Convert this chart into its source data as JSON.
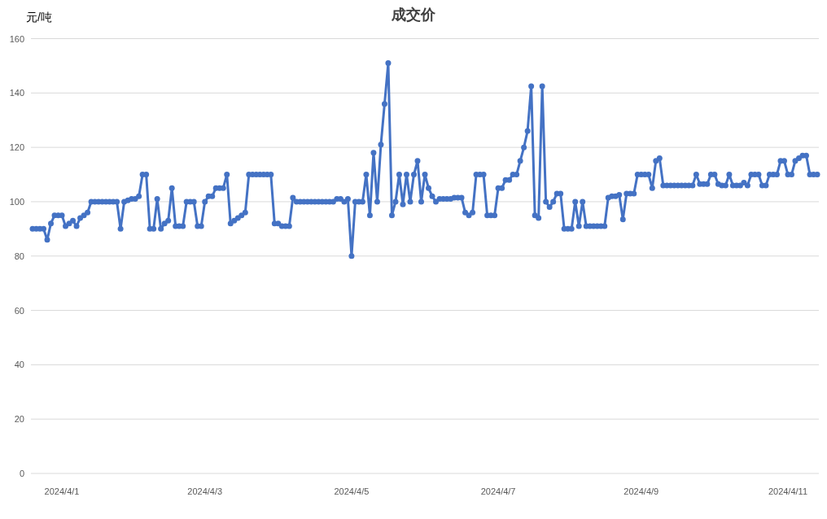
{
  "chart_data": {
    "type": "line",
    "title": "成交价",
    "ylabel": "元/吨",
    "categories": [
      null,
      null,
      null,
      null,
      null,
      null,
      null,
      null,
      "2024/4/1",
      null,
      null,
      null,
      null,
      null,
      null,
      null,
      null,
      null,
      null,
      null,
      null,
      null,
      null,
      null,
      null,
      null,
      null,
      null,
      null,
      null,
      null,
      null,
      null,
      null,
      null,
      null,
      null,
      null,
      null,
      null,
      null,
      null,
      null,
      null,
      null,
      null,
      null,
      "2024/4/3",
      null,
      null,
      null,
      null,
      null,
      null,
      null,
      null,
      null,
      null,
      null,
      null,
      null,
      null,
      null,
      null,
      null,
      null,
      null,
      null,
      null,
      null,
      null,
      null,
      null,
      null,
      null,
      null,
      null,
      null,
      null,
      null,
      null,
      null,
      null,
      null,
      null,
      null,
      null,
      "2024/4/5",
      null,
      null,
      null,
      null,
      null,
      null,
      null,
      null,
      null,
      null,
      null,
      null,
      null,
      null,
      null,
      null,
      null,
      null,
      null,
      null,
      null,
      null,
      null,
      null,
      null,
      null,
      null,
      null,
      null,
      null,
      null,
      null,
      null,
      null,
      null,
      null,
      null,
      null,
      null,
      "2024/4/7",
      null,
      null,
      null,
      null,
      null,
      null,
      null,
      null,
      null,
      null,
      null,
      null,
      null,
      null,
      null,
      null,
      null,
      null,
      null,
      null,
      null,
      null,
      null,
      null,
      null,
      null,
      null,
      null,
      null,
      null,
      null,
      null,
      null,
      null,
      null,
      null,
      null,
      null,
      "2024/4/9",
      null,
      null,
      null,
      null,
      null,
      null,
      null,
      null,
      null,
      null,
      null,
      null,
      null,
      null,
      null,
      null,
      null,
      null,
      null,
      null,
      null,
      null,
      null,
      null,
      null,
      null,
      null,
      null,
      null,
      null,
      null,
      null,
      null,
      null,
      null,
      null,
      null,
      null,
      null,
      "2024/4/11",
      null,
      null,
      null,
      null,
      null,
      null,
      null,
      null
    ],
    "values": [
      90,
      90,
      90,
      90,
      86,
      92,
      95,
      95,
      95,
      91,
      92,
      93,
      91,
      94,
      95,
      96,
      100,
      100,
      100,
      100,
      100,
      100,
      100,
      100,
      90,
      100,
      100.5,
      101,
      101,
      102,
      110,
      110,
      90,
      90,
      101,
      90,
      92,
      93,
      105,
      91,
      91,
      91,
      100,
      100,
      100,
      91,
      91,
      100,
      102,
      102,
      105,
      105,
      105,
      110,
      92,
      93,
      94,
      95,
      96,
      110,
      110,
      110,
      110,
      110,
      110,
      110,
      92,
      92,
      91,
      91,
      91,
      101.5,
      100,
      100,
      100,
      100,
      100,
      100,
      100,
      100,
      100,
      100,
      100,
      101,
      101,
      100,
      101,
      80,
      100,
      100,
      100,
      110,
      95,
      118,
      100,
      121,
      136,
      151,
      95,
      100,
      110,
      99,
      110,
      100,
      110,
      115,
      100,
      110,
      105,
      102,
      100,
      101,
      101,
      101,
      101,
      101.5,
      101.5,
      101.5,
      96,
      95,
      96,
      110,
      110,
      110,
      95,
      95,
      95,
      105,
      105,
      108,
      108,
      110,
      110,
      115,
      120,
      126,
      142.5,
      95,
      94,
      142.5,
      100,
      98,
      100,
      103,
      103,
      90,
      90,
      90,
      100,
      91,
      100,
      91,
      91,
      91,
      91,
      91,
      91,
      101.5,
      102,
      102,
      102.5,
      93.5,
      103,
      103,
      103,
      110,
      110,
      110,
      110,
      105,
      115,
      116,
      106,
      106,
      106,
      106,
      106,
      106,
      106,
      106,
      106,
      110,
      106.5,
      106.5,
      106.5,
      110,
      110,
      106.5,
      106,
      106,
      110,
      106,
      106,
      106,
      107,
      106,
      110,
      110,
      110,
      106,
      106,
      110,
      110,
      110,
      115,
      115,
      110,
      110,
      115,
      116,
      117,
      117,
      110,
      110,
      110
    ],
    "color": "#4472c4",
    "ylim": [
      0,
      160
    ],
    "yticks": [
      0,
      20,
      40,
      60,
      80,
      100,
      120,
      140,
      160
    ],
    "grid": "y",
    "marker": "circle",
    "line_style": "solid"
  }
}
